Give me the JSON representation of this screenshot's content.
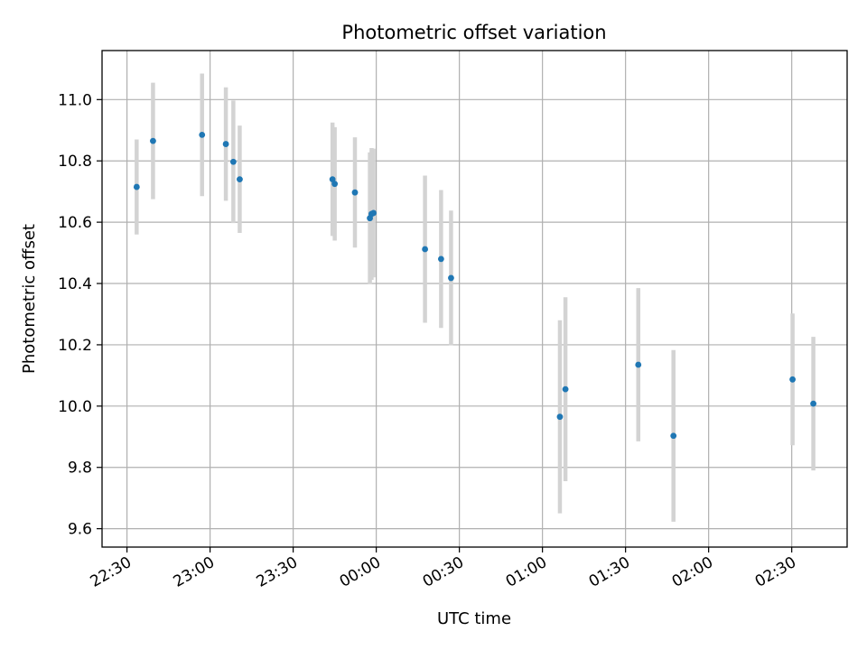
{
  "chart_data": {
    "type": "scatter",
    "title": "Photometric offset variation",
    "xlabel": "UTC time",
    "ylabel": "Photometric offset",
    "grid": true,
    "x_tick_labels": [
      "22:30",
      "23:00",
      "23:30",
      "00:00",
      "00:30",
      "01:00",
      "01:30",
      "02:00",
      "02:30"
    ],
    "x_tick_minutes": [
      -90,
      -60,
      -30,
      0,
      30,
      60,
      90,
      120,
      150
    ],
    "xlim_minutes": [
      -99,
      170
    ],
    "y_ticks": [
      9.6,
      9.8,
      10.0,
      10.2,
      10.4,
      10.6,
      10.8,
      11.0
    ],
    "y_tick_labels": [
      "9.6",
      "9.8",
      "10.0",
      "10.2",
      "10.4",
      "10.6",
      "10.8",
      "11.0"
    ],
    "ylim": [
      9.54,
      11.16
    ],
    "x_unit": "minutes relative to 00:00 UTC",
    "series": [
      {
        "name": "offset",
        "color": "#1f77b4",
        "errorbar_color": "#d3d3d3",
        "points": [
          {
            "x": -86.5,
            "y": 10.715,
            "yerr": 0.155
          },
          {
            "x": -80.6,
            "y": 10.865,
            "yerr": 0.19
          },
          {
            "x": -62.9,
            "y": 10.885,
            "yerr": 0.2
          },
          {
            "x": -54.3,
            "y": 10.855,
            "yerr": 0.185
          },
          {
            "x": -51.6,
            "y": 10.797,
            "yerr": 0.2
          },
          {
            "x": -49.3,
            "y": 10.74,
            "yerr": 0.175
          },
          {
            "x": -15.8,
            "y": 10.74,
            "yerr": 0.185
          },
          {
            "x": -15.0,
            "y": 10.725,
            "yerr": 0.185
          },
          {
            "x": -7.7,
            "y": 10.697,
            "yerr": 0.18
          },
          {
            "x": -2.3,
            "y": 10.613,
            "yerr": 0.215
          },
          {
            "x": -1.7,
            "y": 10.627,
            "yerr": 0.215
          },
          {
            "x": -1.0,
            "y": 10.63,
            "yerr": 0.21
          },
          {
            "x": 17.6,
            "y": 10.512,
            "yerr": 0.24
          },
          {
            "x": 23.4,
            "y": 10.48,
            "yerr": 0.225
          },
          {
            "x": 27.0,
            "y": 10.418,
            "yerr": 0.22
          },
          {
            "x": 66.3,
            "y": 9.965,
            "yerr": 0.315
          },
          {
            "x": 68.3,
            "y": 10.055,
            "yerr": 0.3
          },
          {
            "x": 94.6,
            "y": 10.135,
            "yerr": 0.25
          },
          {
            "x": 107.3,
            "y": 9.903,
            "yerr": 0.28
          },
          {
            "x": 150.3,
            "y": 10.087,
            "yerr": 0.215
          },
          {
            "x": 157.8,
            "y": 10.008,
            "yerr": 0.218
          }
        ]
      }
    ]
  }
}
